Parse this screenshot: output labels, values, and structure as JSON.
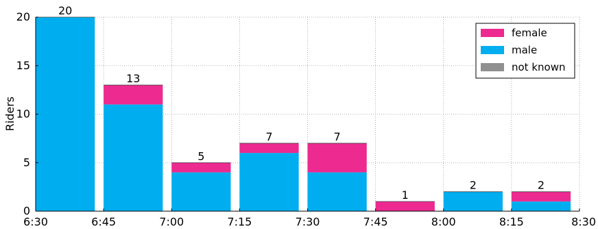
{
  "chart_data": {
    "type": "bar",
    "stacked": true,
    "categories": [
      "6:30",
      "6:45",
      "7:00",
      "7:15",
      "7:30",
      "7:45",
      "8:00",
      "8:15"
    ],
    "x_tick_labels": [
      "6:30",
      "6:45",
      "7:00",
      "7:15",
      "7:30",
      "7:45",
      "8:00",
      "8:15",
      "8:30"
    ],
    "series": [
      {
        "name": "male",
        "values": [
          20,
          11,
          4,
          6,
          4,
          0,
          2,
          1
        ],
        "color": "#00aeef"
      },
      {
        "name": "female",
        "values": [
          0,
          2,
          1,
          1,
          3,
          1,
          0,
          1
        ],
        "color": "#ec2a90"
      },
      {
        "name": "not known",
        "values": [
          0,
          0,
          0,
          0,
          0,
          0,
          0,
          0
        ],
        "color": "#909090"
      }
    ],
    "totals": [
      20,
      13,
      5,
      7,
      7,
      1,
      2,
      2
    ],
    "legend_order": [
      "female",
      "male",
      "not known"
    ],
    "legend_position": "top-right",
    "ylabel": "Riders",
    "xlabel": "",
    "ylim": [
      0,
      20
    ],
    "yticks": [
      0,
      5,
      10,
      15,
      20
    ],
    "grid": true
  }
}
